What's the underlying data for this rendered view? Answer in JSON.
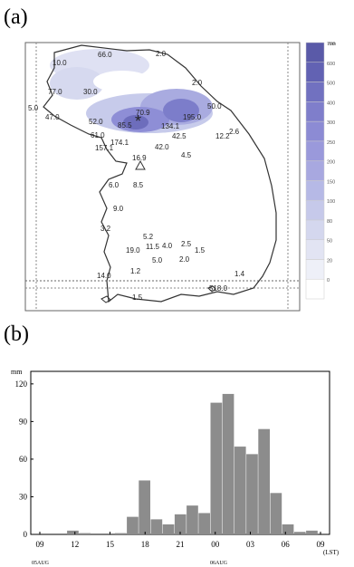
{
  "panel_a": {
    "label": "(a)",
    "legend_unit": "mm",
    "legend_levels": [
      "0",
      "20",
      "50",
      "80",
      "100",
      "150",
      "200",
      "250",
      "300",
      "400",
      "500",
      "600",
      "700"
    ],
    "legend_colors": [
      "#ffffff",
      "#eef0f8",
      "#e2e4f3",
      "#d4d7ee",
      "#c6c9ea",
      "#b6b9e6",
      "#a8a8e0",
      "#9a99db",
      "#8c8bd4",
      "#7f7ecb",
      "#7171c0",
      "#6262b3",
      "#5a5aa8"
    ],
    "stations": [
      {
        "v": "10.0"
      },
      {
        "v": "66.0"
      },
      {
        "v": "2.0"
      },
      {
        "v": "77.0"
      },
      {
        "v": "30.0"
      },
      {
        "v": "2.0"
      },
      {
        "v": "5.0"
      },
      {
        "v": "47.0"
      },
      {
        "v": "70.9"
      },
      {
        "v": "50.0"
      },
      {
        "v": "52.0"
      },
      {
        "v": "85.5"
      },
      {
        "v": "134.1"
      },
      {
        "v": "195.0"
      },
      {
        "v": "61.0"
      },
      {
        "v": "174.1"
      },
      {
        "v": "42.5"
      },
      {
        "v": "12.2"
      },
      {
        "v": "2.6"
      },
      {
        "v": "157.1"
      },
      {
        "v": "42.0"
      },
      {
        "v": "16.9"
      },
      {
        "v": "4.5"
      },
      {
        "v": "6.0"
      },
      {
        "v": "8.5"
      },
      {
        "v": "9.0"
      },
      {
        "v": "5.2"
      },
      {
        "v": "3.2"
      },
      {
        "v": "11.5"
      },
      {
        "v": "4.0"
      },
      {
        "v": "2.5"
      },
      {
        "v": "19.0"
      },
      {
        "v": "5.0"
      },
      {
        "v": "2.0"
      },
      {
        "v": "1.5"
      },
      {
        "v": "14.0"
      },
      {
        "v": "1.2"
      },
      {
        "v": "1.4"
      },
      {
        "v": "1.5"
      },
      {
        "v": "518.0"
      }
    ]
  },
  "panel_b": {
    "label": "(b)",
    "chart_data": {
      "type": "bar",
      "ylabel": "mm",
      "ylim": [
        0,
        130
      ],
      "yticks": [
        "0",
        "30",
        "60",
        "90",
        "120"
      ],
      "xticks": [
        "09",
        "12",
        "15",
        "18",
        "21",
        "00",
        "03",
        "06",
        "09"
      ],
      "xunit": "(LST)",
      "date_labels": [
        "05AUG",
        "06AUG"
      ],
      "values": [
        0,
        0,
        0,
        3,
        1,
        0,
        0,
        1,
        14,
        43,
        12,
        8,
        16,
        23,
        17,
        105,
        112,
        70,
        64,
        84,
        33,
        8,
        2,
        3,
        0
      ],
      "bar_color": "#8c8c8c"
    }
  }
}
